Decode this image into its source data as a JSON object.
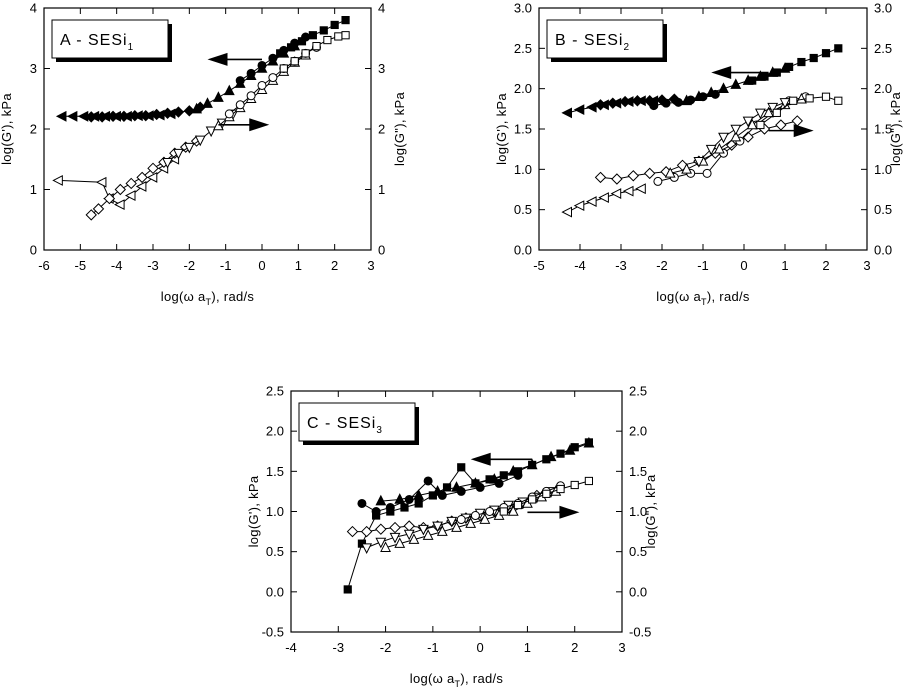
{
  "chart_data": [
    {
      "type": "scatter",
      "panel_label": "A - SESi",
      "panel_label_sub": "1",
      "xlabel": "log(ω a",
      "xlabel_sub": "T",
      "xlabel_end": "), rad/s",
      "ylabel_left": "log(G'), kPa",
      "ylabel_right": "log(G\"), kPa",
      "xlim": [
        -6,
        3
      ],
      "ylim": [
        0,
        4
      ],
      "xticks": [
        -6,
        -5,
        -4,
        -3,
        -2,
        -1,
        0,
        1,
        2,
        3
      ],
      "yticks": [
        "0",
        "1",
        "2",
        "3",
        "4"
      ],
      "grid": false,
      "arrows": [
        {
          "points_to": "left",
          "x_from": 0,
          "x_to": -1.5,
          "y": 3.15
        },
        {
          "points_to": "right",
          "x_from": -1.2,
          "x_to": 0.2,
          "y": 2.07
        }
      ],
      "series": [
        {
          "axis": "left",
          "marker": "triangle-left",
          "filled": true,
          "connected": true,
          "x": [
            -5.5,
            -5.2,
            -4.9,
            -4.6,
            -4.3,
            -4.0,
            -3.7,
            -3.4,
            -3.1,
            -2.8,
            -2.5
          ],
          "y": [
            2.21,
            2.21,
            2.21,
            2.21,
            2.21,
            2.21,
            2.21,
            2.22,
            2.22,
            2.23,
            2.25
          ]
        },
        {
          "axis": "left",
          "marker": "diamond",
          "filled": true,
          "connected": true,
          "x": [
            -4.7,
            -4.4,
            -4.1,
            -3.8,
            -3.5,
            -3.2,
            -2.9,
            -2.6,
            -2.3,
            -2.0,
            -1.7
          ],
          "y": [
            2.2,
            2.2,
            2.21,
            2.21,
            2.22,
            2.22,
            2.24,
            2.26,
            2.28,
            2.3,
            2.36
          ]
        },
        {
          "axis": "left",
          "marker": "triangle-up",
          "filled": true,
          "connected": true,
          "x": [
            -1.8,
            -1.5,
            -1.2,
            -0.9,
            -0.6,
            -0.3,
            0.0,
            0.3,
            0.6,
            0.9
          ],
          "y": [
            2.33,
            2.42,
            2.52,
            2.63,
            2.75,
            2.88,
            3.0,
            3.12,
            3.25,
            3.37
          ]
        },
        {
          "axis": "left",
          "marker": "circle",
          "filled": true,
          "connected": true,
          "x": [
            -0.6,
            -0.3,
            0.0,
            0.3,
            0.6,
            0.9,
            1.2
          ],
          "y": [
            2.8,
            2.92,
            3.05,
            3.17,
            3.3,
            3.42,
            3.52
          ]
        },
        {
          "axis": "left",
          "marker": "square",
          "filled": true,
          "connected": true,
          "x": [
            0.5,
            0.8,
            1.1,
            1.4,
            1.7,
            2.0,
            2.3
          ],
          "y": [
            3.25,
            3.35,
            3.45,
            3.55,
            3.63,
            3.72,
            3.8
          ]
        },
        {
          "axis": "right",
          "marker": "triangle-left",
          "filled": false,
          "connected": true,
          "x": [
            -5.6,
            -4.4,
            -4.2,
            -3.9,
            -3.6,
            -3.3,
            -3.0,
            -2.7,
            -2.4
          ],
          "y": [
            1.15,
            1.12,
            0.85,
            0.75,
            0.9,
            1.05,
            1.2,
            1.35,
            1.5
          ]
        },
        {
          "axis": "right",
          "marker": "diamond",
          "filled": false,
          "connected": true,
          "x": [
            -4.7,
            -4.5,
            -4.2,
            -3.9,
            -3.6,
            -3.3,
            -3.0,
            -2.7,
            -2.4,
            -2.1,
            -1.8
          ],
          "y": [
            0.58,
            0.68,
            0.85,
            1.0,
            1.1,
            1.2,
            1.35,
            1.45,
            1.6,
            1.7,
            1.8
          ]
        },
        {
          "axis": "right",
          "marker": "triangle-down",
          "filled": false,
          "connected": true,
          "x": [
            -2.6,
            -2.3,
            -2.0,
            -1.7,
            -1.4,
            -1.1,
            -0.8
          ],
          "y": [
            1.45,
            1.6,
            1.7,
            1.82,
            1.97,
            2.1,
            2.25
          ]
        },
        {
          "axis": "right",
          "marker": "triangle-up",
          "filled": false,
          "connected": true,
          "x": [
            -1.2,
            -0.9,
            -0.6,
            -0.3,
            0.0,
            0.3,
            0.6,
            0.9,
            1.2
          ],
          "y": [
            2.05,
            2.2,
            2.35,
            2.5,
            2.65,
            2.8,
            2.95,
            3.1,
            3.22
          ]
        },
        {
          "axis": "right",
          "marker": "circle",
          "filled": false,
          "connected": true,
          "x": [
            -0.9,
            -0.6,
            -0.3,
            0.0,
            0.3,
            0.6,
            0.9,
            1.2,
            1.5
          ],
          "y": [
            2.25,
            2.4,
            2.55,
            2.72,
            2.85,
            3.0,
            3.12,
            3.25,
            3.35
          ]
        },
        {
          "axis": "right",
          "marker": "square",
          "filled": false,
          "connected": true,
          "x": [
            0.6,
            0.9,
            1.2,
            1.5,
            1.8,
            2.1,
            2.3
          ],
          "y": [
            3.0,
            3.12,
            3.25,
            3.37,
            3.47,
            3.53,
            3.55
          ]
        }
      ]
    },
    {
      "type": "scatter",
      "panel_label": "B - SESi",
      "panel_label_sub": "2",
      "xlabel": "log(ω a",
      "xlabel_sub": "T",
      "xlabel_end": "), rad/s",
      "ylabel_left": "log(G'), kPa",
      "ylabel_right": "log(G\"), kPa",
      "xlim": [
        -5,
        3
      ],
      "ylim": [
        0,
        3
      ],
      "xticks": [
        -5,
        -4,
        -3,
        -2,
        -1,
        0,
        1,
        2,
        3
      ],
      "yticks": [
        "0.0",
        "0.5",
        "1.0",
        "1.5",
        "2.0",
        "2.5",
        "3.0"
      ],
      "grid": false,
      "arrows": [
        {
          "points_to": "left",
          "x_from": 0.6,
          "x_to": -0.8,
          "y": 2.2
        },
        {
          "points_to": "right",
          "x_from": 0.6,
          "x_to": 1.7,
          "y": 1.48
        }
      ],
      "series": [
        {
          "axis": "left",
          "marker": "triangle-left",
          "filled": true,
          "connected": true,
          "x": [
            -4.3,
            -4.0,
            -3.7,
            -3.4,
            -3.1,
            -2.8,
            -2.5,
            -2.2
          ],
          "y": [
            1.7,
            1.74,
            1.77,
            1.8,
            1.82,
            1.84,
            1.85,
            1.85
          ]
        },
        {
          "axis": "left",
          "marker": "diamond",
          "filled": true,
          "connected": true,
          "x": [
            -3.5,
            -3.2,
            -2.9,
            -2.6,
            -2.3,
            -2.0,
            -1.7
          ],
          "y": [
            1.8,
            1.82,
            1.84,
            1.85,
            1.85,
            1.86,
            1.87
          ]
        },
        {
          "axis": "left",
          "marker": "circle",
          "filled": true,
          "connected": true,
          "x": [
            -2.2,
            -1.9,
            -1.6,
            -1.3,
            -1.0,
            -0.7
          ],
          "y": [
            1.79,
            1.82,
            1.83,
            1.86,
            1.9,
            1.93
          ]
        },
        {
          "axis": "left",
          "marker": "triangle-up",
          "filled": true,
          "connected": true,
          "x": [
            -1.4,
            -1.1,
            -0.8,
            -0.5,
            -0.2,
            0.1,
            0.4,
            0.7,
            1.0
          ],
          "y": [
            1.85,
            1.9,
            1.95,
            2.0,
            2.05,
            2.1,
            2.15,
            2.2,
            2.25
          ]
        },
        {
          "axis": "left",
          "marker": "square",
          "filled": true,
          "connected": true,
          "x": [
            0.2,
            0.5,
            0.8,
            1.1,
            1.4,
            1.7,
            2.0,
            2.3
          ],
          "y": [
            2.1,
            2.15,
            2.2,
            2.27,
            2.33,
            2.38,
            2.44,
            2.5
          ]
        },
        {
          "axis": "right",
          "marker": "triangle-left",
          "filled": false,
          "connected": true,
          "x": [
            -4.3,
            -4.0,
            -3.7,
            -3.4,
            -3.1,
            -2.8,
            -2.5
          ],
          "y": [
            0.47,
            0.55,
            0.6,
            0.65,
            0.7,
            0.73,
            0.76
          ]
        },
        {
          "axis": "right",
          "marker": "diamond",
          "filled": false,
          "connected": true,
          "x": [
            -3.5,
            -3.1,
            -2.7,
            -2.3,
            -1.9,
            -1.5,
            -1.1,
            -0.7,
            -0.3,
            0.1,
            0.5,
            0.9,
            1.3
          ],
          "y": [
            0.9,
            0.88,
            0.92,
            0.95,
            0.97,
            1.05,
            1.1,
            1.2,
            1.3,
            1.4,
            1.5,
            1.55,
            1.6
          ]
        },
        {
          "axis": "right",
          "marker": "circle",
          "filled": false,
          "connected": true,
          "x": [
            -2.1,
            -1.7,
            -1.3,
            -0.9,
            -0.5,
            -0.1,
            0.3,
            0.7,
            1.1,
            1.5
          ],
          "y": [
            0.85,
            0.9,
            0.95,
            0.95,
            1.2,
            1.35,
            1.55,
            1.7,
            1.85,
            1.9
          ]
        },
        {
          "axis": "right",
          "marker": "triangle-up",
          "filled": false,
          "connected": true,
          "x": [
            -1.8,
            -1.4,
            -1.0,
            -0.6,
            -0.2,
            0.2,
            0.6,
            1.0,
            1.4
          ],
          "y": [
            0.95,
            1.0,
            1.1,
            1.25,
            1.4,
            1.55,
            1.7,
            1.8,
            1.87
          ]
        },
        {
          "axis": "right",
          "marker": "triangle-down",
          "filled": false,
          "connected": true,
          "x": [
            -1.1,
            -0.8,
            -0.5,
            -0.2,
            0.1,
            0.4,
            0.7,
            1.0
          ],
          "y": [
            1.1,
            1.25,
            1.4,
            1.5,
            1.6,
            1.7,
            1.77,
            1.83
          ]
        },
        {
          "axis": "right",
          "marker": "square",
          "filled": false,
          "connected": true,
          "x": [
            0.4,
            0.8,
            1.2,
            1.6,
            2.0,
            2.3
          ],
          "y": [
            1.55,
            1.7,
            1.85,
            1.88,
            1.9,
            1.85
          ]
        }
      ]
    },
    {
      "type": "scatter",
      "panel_label": "C - SESi",
      "panel_label_sub": "3",
      "xlabel": "log(ω a",
      "xlabel_sub": "T",
      "xlabel_end": "), rad/s",
      "ylabel_left": "log(G'), kPa",
      "ylabel_right": "log(G\"), kPa",
      "xlim": [
        -4,
        3
      ],
      "ylim": [
        -0.5,
        2.5
      ],
      "xticks": [
        -4,
        -3,
        -2,
        -1,
        0,
        1,
        2,
        3
      ],
      "yticks": [
        "-0.5",
        "0.0",
        "0.5",
        "1.0",
        "1.5",
        "2.0",
        "2.5"
      ],
      "grid": false,
      "arrows": [
        {
          "points_to": "left",
          "x_from": 1.1,
          "x_to": -0.2,
          "y": 1.65
        },
        {
          "points_to": "right",
          "x_from": 1.0,
          "x_to": 2.1,
          "y": 0.99
        }
      ],
      "series": [
        {
          "axis": "left",
          "marker": "square",
          "filled": true,
          "connected": true,
          "x": [
            -2.8,
            -2.5,
            -2.2,
            -1.9,
            -1.6,
            -1.3,
            -1.0,
            -0.7,
            -0.4,
            -0.1,
            0.2,
            0.5,
            0.8,
            1.1,
            1.4,
            1.7,
            2.0,
            2.3
          ],
          "y": [
            0.03,
            0.6,
            0.95,
            1.0,
            1.05,
            1.1,
            1.2,
            1.3,
            1.55,
            1.35,
            1.4,
            1.45,
            1.5,
            1.58,
            1.65,
            1.72,
            1.8,
            1.86
          ]
        },
        {
          "axis": "left",
          "marker": "circle",
          "filled": true,
          "connected": true,
          "x": [
            -2.5,
            -2.2,
            -1.9,
            -1.5,
            -1.1,
            -0.8,
            -0.4,
            0.0,
            0.4,
            0.8
          ],
          "y": [
            1.1,
            1.0,
            1.05,
            1.15,
            1.38,
            1.2,
            1.25,
            1.3,
            1.35,
            1.45
          ]
        },
        {
          "axis": "left",
          "marker": "triangle-up",
          "filled": true,
          "connected": true,
          "x": [
            -2.1,
            -1.7,
            -1.3,
            -0.9,
            -0.5,
            -0.1,
            0.3,
            0.7,
            1.1,
            1.5,
            1.9,
            2.3
          ],
          "y": [
            1.13,
            1.15,
            1.2,
            1.25,
            1.3,
            1.35,
            1.4,
            1.5,
            1.58,
            1.68,
            1.76,
            1.85
          ]
        },
        {
          "axis": "right",
          "marker": "diamond",
          "filled": false,
          "connected": true,
          "x": [
            -2.7,
            -2.4,
            -2.1,
            -1.8,
            -1.5,
            -1.2,
            -0.9,
            -0.6,
            -0.3,
            0.0,
            0.3,
            0.6,
            0.9,
            1.2
          ],
          "y": [
            0.75,
            0.75,
            0.78,
            0.8,
            0.82,
            0.8,
            0.82,
            0.88,
            0.92,
            0.95,
            1.0,
            1.05,
            1.1,
            1.2
          ]
        },
        {
          "axis": "right",
          "marker": "triangle-down",
          "filled": false,
          "connected": true,
          "x": [
            -2.4,
            -2.1,
            -1.8,
            -1.5,
            -1.2,
            -0.9,
            -0.6,
            -0.3,
            0.0,
            0.3,
            0.6,
            0.9,
            1.2,
            1.5
          ],
          "y": [
            0.55,
            0.62,
            0.68,
            0.72,
            0.78,
            0.82,
            0.88,
            0.92,
            0.98,
            1.02,
            1.08,
            1.12,
            1.18,
            1.25
          ]
        },
        {
          "axis": "right",
          "marker": "triangle-up",
          "filled": false,
          "connected": true,
          "x": [
            -2.0,
            -1.7,
            -1.4,
            -1.1,
            -0.8,
            -0.5,
            -0.2,
            0.1,
            0.4,
            0.7,
            1.0,
            1.3,
            1.6
          ],
          "y": [
            0.55,
            0.6,
            0.65,
            0.7,
            0.75,
            0.8,
            0.85,
            0.9,
            0.95,
            1.0,
            1.1,
            1.18,
            1.25
          ]
        },
        {
          "axis": "right",
          "marker": "circle",
          "filled": false,
          "connected": true,
          "x": [
            -0.4,
            -0.1,
            0.2,
            0.5,
            0.8,
            1.1,
            1.4,
            1.7
          ],
          "y": [
            0.9,
            0.95,
            1.0,
            1.05,
            1.1,
            1.18,
            1.25,
            1.32
          ]
        },
        {
          "axis": "right",
          "marker": "square",
          "filled": false,
          "connected": true,
          "x": [
            0.5,
            0.8,
            1.1,
            1.4,
            1.7,
            2.0,
            2.3
          ],
          "y": [
            1.0,
            1.08,
            1.15,
            1.22,
            1.28,
            1.33,
            1.38
          ]
        }
      ]
    }
  ]
}
